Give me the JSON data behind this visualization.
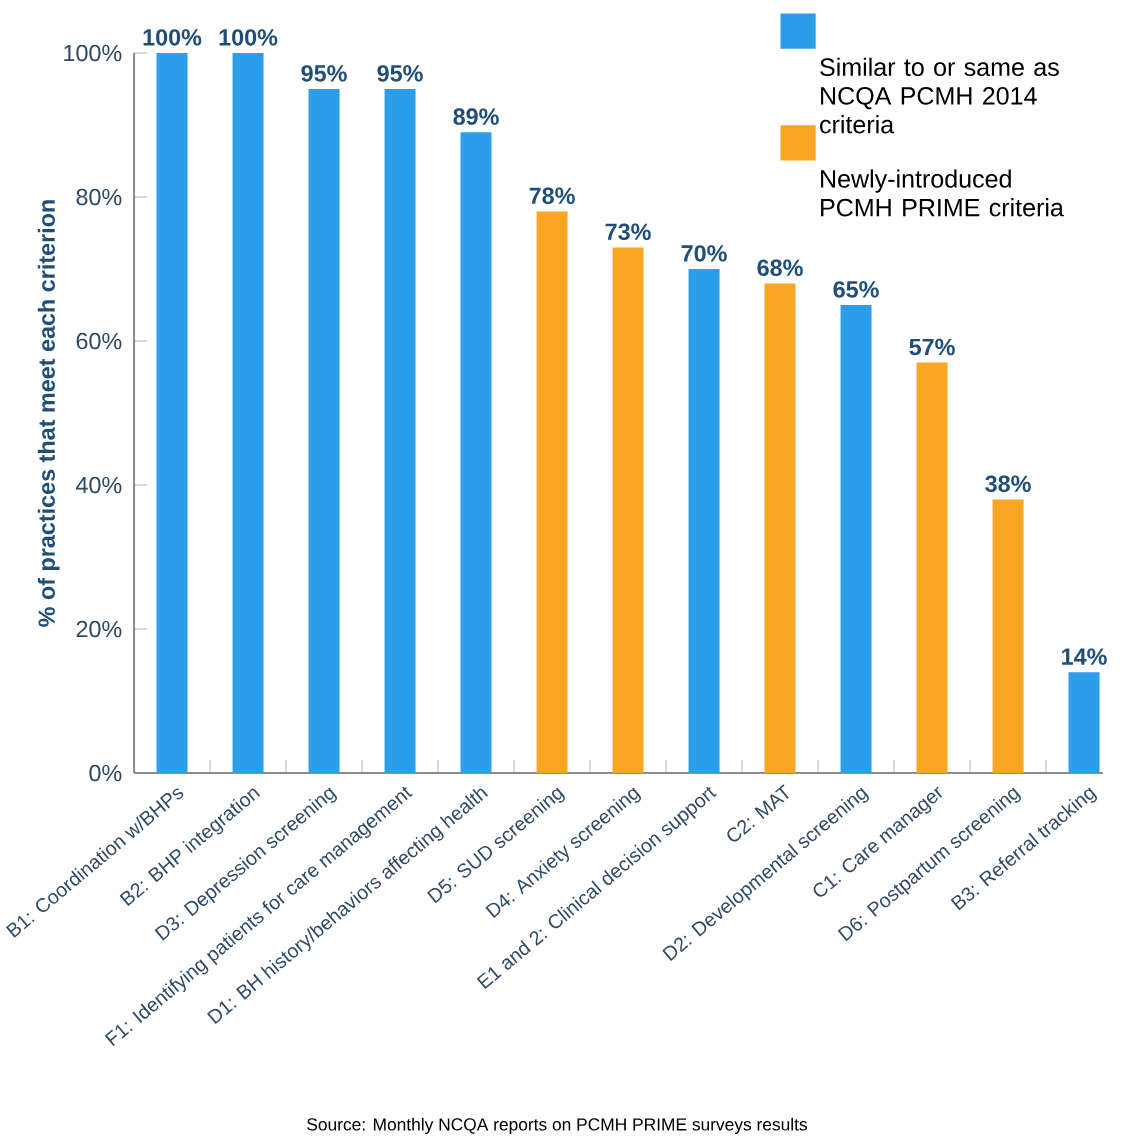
{
  "chart_data": {
    "type": "bar",
    "ylabel": "% of practices that meet each criterion",
    "categories": [
      "B1: Coordination w/BHPs",
      "B2: BHP integration",
      "D3: Depression screening",
      "F1: Identifying patients for care management",
      "D1: BH history/behaviors affecting health",
      "D5: SUD screening",
      "D4: Anxiety screening",
      "E1 and 2: Clinical decision support",
      "C2: MAT",
      "D2: Developmental screening",
      "C1: Care manager",
      "D6: Postpartum screening",
      "B3: Referral tracking"
    ],
    "series": [
      {
        "name": "Similar to or same as NCQA PCMH 2014 criteria",
        "color": "#2b9de9",
        "values": [
          100,
          100,
          95,
          95,
          89,
          null,
          null,
          70,
          null,
          65,
          null,
          null,
          14
        ],
        "value_labels": [
          "100%",
          "100%",
          "95%",
          "95%",
          "89%",
          null,
          null,
          "70%",
          null,
          "65%",
          null,
          null,
          "14%"
        ]
      },
      {
        "name": "Newly-introduced PCMH PRIME criteria",
        "color": "#f8a623",
        "values": [
          null,
          null,
          null,
          null,
          null,
          78,
          73,
          null,
          68,
          null,
          57,
          38,
          null
        ],
        "value_labels": [
          null,
          null,
          null,
          null,
          null,
          "78%",
          "73%",
          null,
          "68%",
          null,
          "57%",
          "38%",
          null
        ]
      }
    ],
    "ylim": [
      0,
      100
    ],
    "yticks": [
      {
        "value": 0,
        "label": "0%"
      },
      {
        "value": 20,
        "label": "20%"
      },
      {
        "value": 40,
        "label": "40%"
      },
      {
        "value": 60,
        "label": "60%"
      },
      {
        "value": 80,
        "label": "80%"
      },
      {
        "value": 100,
        "label": "100%"
      }
    ],
    "legend": "top right",
    "annotations": [
      "Source: Monthly NCQA reports on PCMH PRIME surveys results"
    ]
  }
}
